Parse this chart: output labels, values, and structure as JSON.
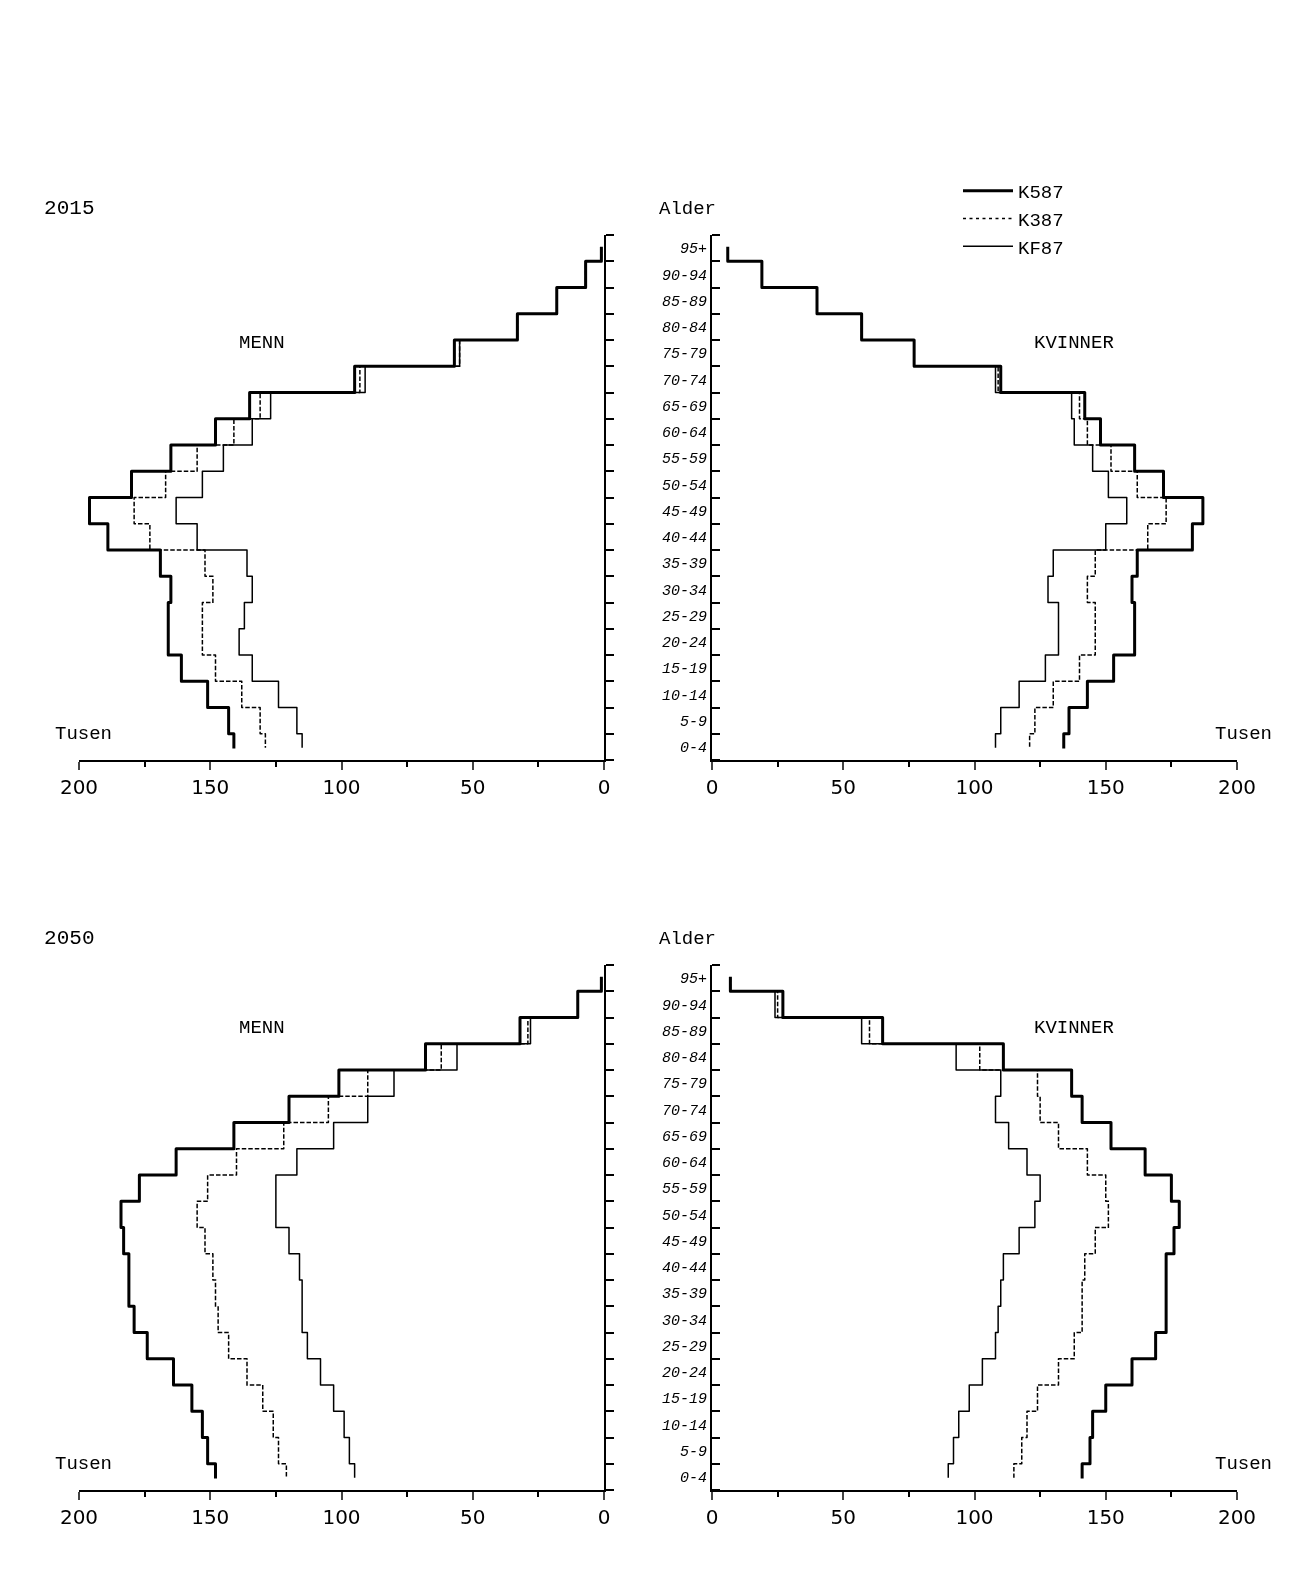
{
  "chart_data": [
    {
      "type": "step",
      "orientation": "horizontal",
      "title": "2015",
      "xlabel": "Tusen",
      "annotations": [
        "MENN"
      ],
      "categories": [
        null,
        null,
        null,
        null,
        null,
        null,
        null,
        null,
        null,
        null,
        null,
        null,
        null,
        null,
        null,
        null,
        null,
        null,
        null,
        null
      ],
      "xlim": [
        200,
        0
      ],
      "xticks": [
        200,
        150,
        100,
        50,
        0
      ],
      "tick_labels": "x",
      "grid": false,
      "legend": false,
      "series": [
        {
          "color": "#000000",
          "line_style": "solid",
          "values": [
            1,
            7,
            18,
            33,
            57,
            95,
            135,
            148,
            165,
            180,
            196,
            189,
            169,
            165,
            166,
            166,
            161,
            151,
            143,
            141
          ]
        },
        {
          "color": "#000000",
          "line_style": "dashed",
          "values": [
            1,
            7,
            18,
            33,
            55,
            93,
            131,
            141,
            155,
            167,
            179,
            173,
            152,
            149,
            153,
            153,
            148,
            138,
            131,
            129
          ]
        },
        {
          "color": "#000000",
          "line_style": "solid",
          "values": [
            1,
            7,
            18,
            33,
            55,
            91,
            127,
            134,
            145,
            153,
            163,
            155,
            136,
            134,
            137,
            139,
            134,
            124,
            117,
            115
          ]
        }
      ]
    },
    {
      "type": "step",
      "orientation": "horizontal",
      "ylabel": "Alder",
      "xlabel": "Tusen",
      "annotations": [
        "KVINNER"
      ],
      "categories": [
        "95+",
        "90-94",
        "85-89",
        "80-84",
        "75-79",
        "70-74",
        "65-69",
        "60-64",
        "55-59",
        "50-54",
        "45-49",
        "40-44",
        "35-39",
        "30-34",
        "25-29",
        "20-24",
        "15-19",
        "10-14",
        "5-9",
        "0-4"
      ],
      "xlim": [
        0,
        200
      ],
      "xticks": [
        0,
        50,
        100,
        150,
        200
      ],
      "grid": false,
      "legend": "top right",
      "series": [
        {
          "name": "K587",
          "color": "#000000",
          "line_style": "solid",
          "values": [
            6,
            19,
            40,
            57,
            77,
            110,
            142,
            148,
            161,
            172,
            187,
            183,
            162,
            160,
            161,
            161,
            153,
            143,
            136,
            134
          ]
        },
        {
          "name": "K387",
          "color": "#000000",
          "line_style": "dashed",
          "values": [
            6,
            19,
            40,
            57,
            77,
            109,
            140,
            143,
            152,
            162,
            173,
            166,
            146,
            143,
            146,
            146,
            140,
            130,
            123,
            121
          ]
        },
        {
          "name": "KF87",
          "color": "#000000",
          "line_style": "solid",
          "values": [
            6,
            19,
            40,
            57,
            77,
            108,
            137,
            138,
            145,
            151,
            158,
            150,
            130,
            128,
            132,
            132,
            127,
            117,
            110,
            108
          ]
        }
      ]
    },
    {
      "type": "step",
      "orientation": "horizontal",
      "title": "2050",
      "xlabel": "Tusen",
      "annotations": [
        "MENN"
      ],
      "categories": [
        null,
        null,
        null,
        null,
        null,
        null,
        null,
        null,
        null,
        null,
        null,
        null,
        null,
        null,
        null,
        null,
        null,
        null,
        null,
        null
      ],
      "xlim": [
        200,
        0
      ],
      "xticks": [
        200,
        150,
        100,
        50,
        0
      ],
      "tick_labels": "x",
      "grid": false,
      "legend": false,
      "series": [
        {
          "color": "#000000",
          "line_style": "solid",
          "values": [
            1,
            10,
            32,
            68,
            101,
            120,
            141,
            163,
            177,
            184,
            183,
            181,
            181,
            179,
            174,
            164,
            157,
            153,
            151,
            148
          ]
        },
        {
          "color": "#000000",
          "line_style": "dashed",
          "values": [
            1,
            10,
            29,
            62,
            90,
            105,
            122,
            140,
            151,
            155,
            152,
            149,
            148,
            147,
            143,
            136,
            130,
            126,
            124,
            121
          ]
        },
        {
          "color": "#000000",
          "line_style": "solid",
          "values": [
            1,
            10,
            28,
            56,
            80,
            90,
            103,
            117,
            125,
            125,
            120,
            116,
            115,
            115,
            113,
            108,
            103,
            99,
            97,
            95
          ]
        }
      ]
    },
    {
      "type": "step",
      "orientation": "horizontal",
      "ylabel": "Alder",
      "xlabel": "Tusen",
      "annotations": [
        "KVINNER"
      ],
      "categories": [
        "95+",
        "90-94",
        "85-89",
        "80-84",
        "75-79",
        "70-74",
        "65-69",
        "60-64",
        "55-59",
        "50-54",
        "45-49",
        "40-44",
        "35-39",
        "30-34",
        "25-29",
        "20-24",
        "15-19",
        "10-14",
        "5-9",
        "0-4"
      ],
      "xlim": [
        0,
        200
      ],
      "xticks": [
        0,
        50,
        100,
        150,
        200
      ],
      "grid": false,
      "legend": false,
      "series": [
        {
          "color": "#000000",
          "line_style": "solid",
          "values": [
            7,
            27,
            65,
            111,
            137,
            141,
            152,
            165,
            175,
            178,
            176,
            173,
            173,
            173,
            169,
            160,
            150,
            145,
            144,
            141
          ]
        },
        {
          "color": "#000000",
          "line_style": "dashed",
          "values": [
            7,
            25,
            60,
            102,
            124,
            125,
            132,
            143,
            150,
            151,
            146,
            142,
            141,
            141,
            138,
            132,
            124,
            120,
            118,
            115
          ]
        },
        {
          "color": "#000000",
          "line_style": "solid",
          "values": [
            7,
            24,
            57,
            93,
            110,
            108,
            113,
            120,
            125,
            123,
            117,
            111,
            110,
            109,
            108,
            103,
            98,
            94,
            92,
            90
          ]
        }
      ]
    }
  ]
}
